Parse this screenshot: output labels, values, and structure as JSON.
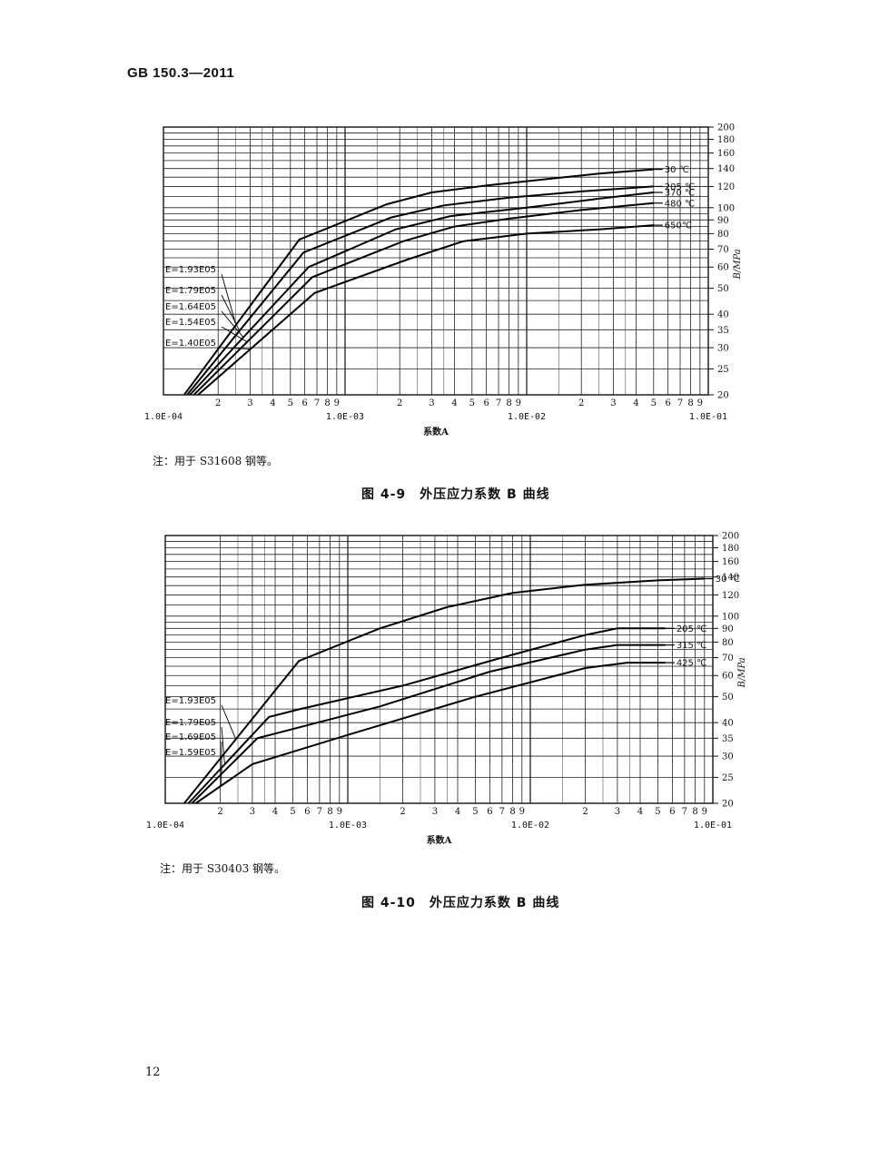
{
  "header": {
    "title": "GB 150.3—2011"
  },
  "page_number": "12",
  "chart_data": [
    {
      "type": "line",
      "xscale": "log",
      "yscale": "log",
      "xlim": [
        0.0001,
        0.1
      ],
      "ylim": [
        20,
        200
      ],
      "xlabel": "系数A",
      "ylabel": "B/MPa",
      "x_decade_labels": [
        "1.0E-04",
        "1.0E-03",
        "1.0E-02",
        "1.0E-01"
      ],
      "x_minor_labels": [
        "2",
        "3",
        "4",
        "5",
        "6",
        "7",
        "8",
        "9"
      ],
      "y_ticks": [
        20,
        25,
        30,
        35,
        40,
        50,
        60,
        70,
        80,
        90,
        100,
        120,
        140,
        160,
        180,
        200
      ],
      "grid": true,
      "series": [
        {
          "name": "30 ℃",
          "E": "E=1.93E05",
          "points": [
            [
              0.00013,
              20
            ],
            [
              0.00056,
              76
            ],
            [
              0.0017,
              103
            ],
            [
              0.003,
              114
            ],
            [
              0.006,
              121
            ],
            [
              0.013,
              128
            ],
            [
              0.025,
              134
            ],
            [
              0.05,
              139
            ]
          ]
        },
        {
          "name": "205 ℃",
          "E": "E=1.79E05",
          "points": [
            [
              0.000135,
              20
            ],
            [
              0.00059,
              68
            ],
            [
              0.0018,
              92
            ],
            [
              0.0035,
              102
            ],
            [
              0.008,
              109
            ],
            [
              0.02,
              115
            ],
            [
              0.05,
              120
            ]
          ]
        },
        {
          "name": "370 ℃",
          "E": "E=1.64E05",
          "points": [
            [
              0.00014,
              20
            ],
            [
              0.00063,
              60
            ],
            [
              0.0019,
              83
            ],
            [
              0.0038,
              93
            ],
            [
              0.01,
              100
            ],
            [
              0.025,
              108
            ],
            [
              0.05,
              114
            ]
          ]
        },
        {
          "name": "480 ℃",
          "E": "E=1.54E05",
          "points": [
            [
              0.000147,
              20
            ],
            [
              0.00066,
              55
            ],
            [
              0.0021,
              75
            ],
            [
              0.004,
              85
            ],
            [
              0.008,
              91
            ],
            [
              0.02,
              98
            ],
            [
              0.05,
              104
            ]
          ]
        },
        {
          "name": "650℃",
          "E": "E=1.40E05",
          "points": [
            [
              0.000155,
              20
            ],
            [
              0.00068,
              48
            ],
            [
              0.0022,
              64
            ],
            [
              0.0045,
              75
            ],
            [
              0.01,
              80
            ],
            [
              0.025,
              83
            ],
            [
              0.05,
              86
            ]
          ]
        }
      ],
      "note": "注：用于 S31608 钢等。",
      "caption": "图 4-9　外压应力系数 B 曲线"
    },
    {
      "type": "line",
      "xscale": "log",
      "yscale": "log",
      "xlim": [
        0.0001,
        0.1
      ],
      "ylim": [
        20,
        200
      ],
      "xlabel": "系数A",
      "ylabel": "B/MPa",
      "x_decade_labels": [
        "1.0E-04",
        "1.0E-03",
        "1.0E-02",
        "1.0E-01"
      ],
      "x_minor_labels": [
        "2",
        "3",
        "4",
        "5",
        "6",
        "7",
        "8",
        "9"
      ],
      "y_ticks": [
        20,
        25,
        30,
        35,
        40,
        50,
        60,
        70,
        80,
        90,
        100,
        120,
        140,
        160,
        180,
        200
      ],
      "grid": true,
      "series": [
        {
          "name": "30 ℃",
          "E": "E=1.93E05",
          "points": [
            [
              0.000127,
              20
            ],
            [
              0.00054,
              68
            ],
            [
              0.0015,
              90
            ],
            [
              0.0035,
              108
            ],
            [
              0.008,
              122
            ],
            [
              0.02,
              131
            ],
            [
              0.05,
              136
            ],
            [
              0.09,
              138
            ]
          ]
        },
        {
          "name": "205 ℃",
          "E": "E=1.79E05",
          "points": [
            [
              0.000134,
              20
            ],
            [
              0.00037,
              42
            ],
            [
              0.00055,
              45
            ],
            [
              0.002,
              55
            ],
            [
              0.007,
              70
            ],
            [
              0.02,
              85
            ],
            [
              0.03,
              90
            ],
            [
              0.055,
              90
            ]
          ]
        },
        {
          "name": "315 ℃",
          "E": "E=1.69E05",
          "points": [
            [
              0.00014,
              20
            ],
            [
              0.00032,
              35
            ],
            [
              0.0015,
              46
            ],
            [
              0.006,
              62
            ],
            [
              0.02,
              75
            ],
            [
              0.03,
              78
            ],
            [
              0.055,
              78
            ]
          ]
        },
        {
          "name": "425 ℃",
          "E": "E=1.59E05",
          "points": [
            [
              0.000147,
              20
            ],
            [
              0.0003,
              28
            ],
            [
              0.001,
              36
            ],
            [
              0.005,
              50
            ],
            [
              0.02,
              64
            ],
            [
              0.034,
              67
            ],
            [
              0.055,
              67
            ]
          ]
        }
      ],
      "note": "注：用于 S30403 钢等。",
      "caption": "图 4-10　外压应力系数 B 曲线"
    }
  ]
}
